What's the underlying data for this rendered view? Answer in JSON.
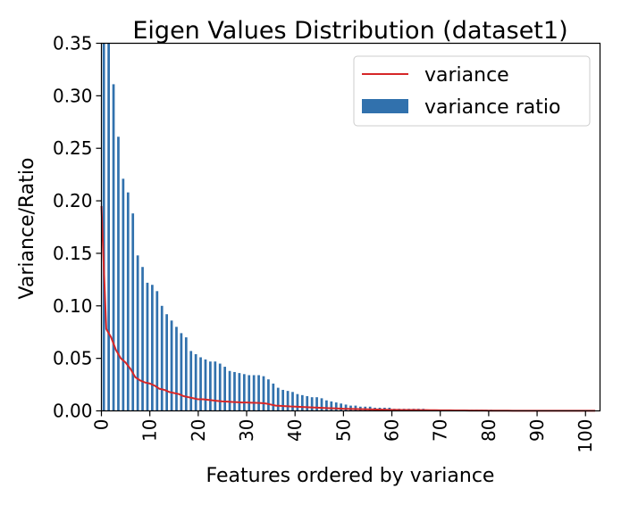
{
  "chart_data": {
    "type": "bar",
    "title": "Eigen Values Distribution (dataset1)",
    "xlabel": "Features ordered by variance",
    "ylabel": "Variance/Ratio",
    "xlim": [
      0,
      103
    ],
    "ylim": [
      0,
      0.35
    ],
    "xticks": [
      0,
      10,
      20,
      30,
      40,
      50,
      60,
      70,
      80,
      90,
      100
    ],
    "yticks": [
      0.0,
      0.05,
      0.1,
      0.15,
      0.2,
      0.25,
      0.3,
      0.35
    ],
    "ytick_labels": [
      "0.00",
      "0.05",
      "0.10",
      "0.15",
      "0.20",
      "0.25",
      "0.30",
      "0.35"
    ],
    "grid": false,
    "legend_position": "upper-right",
    "x": [
      0,
      1,
      2,
      3,
      4,
      5,
      6,
      7,
      8,
      9,
      10,
      11,
      12,
      13,
      14,
      15,
      16,
      17,
      18,
      19,
      20,
      21,
      22,
      23,
      24,
      25,
      26,
      27,
      28,
      29,
      30,
      31,
      32,
      33,
      34,
      35,
      36,
      37,
      38,
      39,
      40,
      41,
      42,
      43,
      44,
      45,
      46,
      47,
      48,
      49,
      50,
      51,
      52,
      53,
      54,
      55,
      56,
      57,
      58,
      59,
      60,
      61,
      62,
      63,
      64,
      65,
      66,
      67,
      68,
      69,
      70,
      71,
      72,
      73,
      74,
      75,
      76,
      77,
      78,
      79,
      80,
      81,
      82,
      83,
      84,
      85,
      86,
      87,
      88,
      89,
      90,
      91,
      92,
      93,
      94,
      95,
      96,
      97,
      98,
      99,
      100,
      101,
      102
    ],
    "series": [
      {
        "name": "variance ratio",
        "kind": "bar",
        "color": "#3171ad",
        "values": [
          0.35,
          0.35,
          0.311,
          0.261,
          0.221,
          0.208,
          0.188,
          0.148,
          0.137,
          0.122,
          0.12,
          0.114,
          0.1,
          0.092,
          0.086,
          0.08,
          0.074,
          0.07,
          0.057,
          0.054,
          0.051,
          0.049,
          0.047,
          0.047,
          0.045,
          0.042,
          0.038,
          0.037,
          0.036,
          0.035,
          0.034,
          0.034,
          0.034,
          0.033,
          0.03,
          0.026,
          0.022,
          0.02,
          0.019,
          0.018,
          0.016,
          0.015,
          0.014,
          0.013,
          0.013,
          0.012,
          0.01,
          0.009,
          0.008,
          0.007,
          0.006,
          0.005,
          0.005,
          0.004,
          0.004,
          0.004,
          0.003,
          0.003,
          0.003,
          0.003,
          0.002,
          0.002,
          0.002,
          0.002,
          0.002,
          0.002,
          0.002,
          0.001,
          0.001,
          0.001,
          0.001,
          0.001,
          0.001,
          0.001,
          0.001,
          0.001,
          0.001,
          0.001,
          0.001,
          0.001,
          0.001,
          0.0008,
          0.0008,
          0.0008,
          0.0007,
          0.0007,
          0.0007,
          0.0006,
          0.0006,
          0.0006,
          0.0005,
          0.0005,
          0.0005,
          0.0004,
          0.0004,
          0.0004,
          0.0003,
          0.0003,
          0.0003,
          0.0002,
          0.0002,
          0.0002,
          0.0001
        ]
      },
      {
        "name": "variance",
        "kind": "line",
        "color": "#d62728",
        "values": [
          0.195,
          0.078,
          0.07,
          0.058,
          0.05,
          0.046,
          0.04,
          0.032,
          0.029,
          0.027,
          0.026,
          0.024,
          0.021,
          0.02,
          0.018,
          0.017,
          0.016,
          0.014,
          0.013,
          0.012,
          0.011,
          0.011,
          0.0105,
          0.01,
          0.0095,
          0.009,
          0.0088,
          0.0085,
          0.0083,
          0.008,
          0.008,
          0.0078,
          0.0076,
          0.0074,
          0.007,
          0.006,
          0.005,
          0.0048,
          0.0045,
          0.0042,
          0.004,
          0.0038,
          0.0036,
          0.0034,
          0.0032,
          0.003,
          0.0028,
          0.0026,
          0.0024,
          0.0022,
          0.002,
          0.0019,
          0.0018,
          0.0017,
          0.0016,
          0.0015,
          0.0014,
          0.0013,
          0.0012,
          0.0011,
          0.001,
          0.001,
          0.0009,
          0.0009,
          0.0008,
          0.0008,
          0.0007,
          0.0007,
          0.0006,
          0.0006,
          0.0005,
          0.0005,
          0.0005,
          0.0004,
          0.0004,
          0.0004,
          0.0003,
          0.0003,
          0.0003,
          0.0003,
          0.0002,
          0.0002,
          0.0002,
          0.0002,
          0.0002,
          0.0001,
          0.0001,
          0.0001,
          0.0001,
          0.0001,
          0.0001,
          0.0001,
          0.0001,
          0.0001,
          0.0001,
          0.0001,
          0.0001,
          0.0001,
          0.0001,
          0.0001,
          0.0001,
          0.0001,
          0.0001
        ]
      }
    ]
  }
}
